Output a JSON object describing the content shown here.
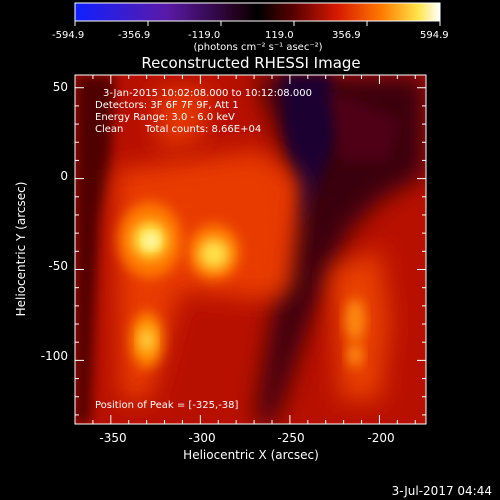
{
  "colorbar": {
    "tick_labels": [
      "-594.9",
      "-356.9",
      "-119.0",
      "119.0",
      "356.9",
      "594.9"
    ],
    "unit_label": "(photons cm⁻² s⁻¹ asec⁻²)",
    "range": [
      -594.9,
      594.9
    ]
  },
  "title": "Reconstructed RHESSI Image",
  "annotations": {
    "time": "3-Jan-2015 10:02:08.000 to 10:12:08.000",
    "detectors": "Detectors: 3F 6F 7F 9F, Att 1",
    "energy": "Energy Range: 3.0 - 6.0 keV",
    "clean": "Clean",
    "counts": "Total counts: 8.66E+04",
    "peak": "Position of Peak = [-325,-38]"
  },
  "footer": {
    "date": "3-Jul-2017 04:44"
  },
  "chart_data": {
    "type": "heatmap",
    "title": "Reconstructed RHESSI Image",
    "xlabel": "Heliocentric X (arcsec)",
    "ylabel": "Heliocentric Y (arcsec)",
    "xlim": [
      -370,
      -174
    ],
    "ylim": [
      -135,
      57
    ],
    "x_ticks": [
      -350,
      -300,
      -250,
      -200
    ],
    "y_ticks": [
      50,
      0,
      -50,
      -100
    ],
    "peak_position": [
      -325,
      -38
    ],
    "colormap": "hot-diverging (blue-black-red-yellow-white)",
    "approx_sources": [
      {
        "x": -325,
        "y": -38,
        "intensity": 594.9
      },
      {
        "x": -291,
        "y": -44,
        "intensity": 530
      },
      {
        "x": -325,
        "y": -90,
        "intensity": 420
      },
      {
        "x": -213,
        "y": -85,
        "intensity": 300
      }
    ]
  }
}
